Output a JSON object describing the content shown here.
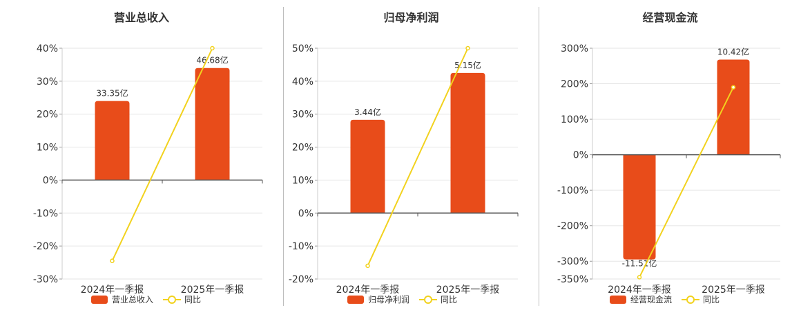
{
  "colors": {
    "bar": "#e84c1a",
    "line": "#f2d21e",
    "axis": "#555555",
    "grid": "#e6e6e6"
  },
  "chart_data": [
    {
      "type": "bar",
      "title": "营业总收入",
      "categories": [
        "2024年一季报",
        "2025年一季报"
      ],
      "series": [
        {
          "name": "营业总收入",
          "kind": "bar",
          "values": [
            24.0,
            34.0
          ],
          "labels": [
            "33.35亿",
            "46.68亿"
          ]
        },
        {
          "name": "同比",
          "kind": "line",
          "values": [
            -24.5,
            40.0
          ]
        }
      ],
      "ylim": [
        -30,
        40
      ],
      "yticks": [
        40,
        30,
        20,
        10,
        0,
        -10,
        -20,
        -30
      ],
      "ytick_labels": [
        "40%",
        "30%",
        "20%",
        "10%",
        "0%",
        "-10%",
        "-20%",
        "-30%"
      ],
      "grid": true,
      "legend": "bottom"
    },
    {
      "type": "bar",
      "title": "归母净利润",
      "categories": [
        "2024年一季报",
        "2025年一季报"
      ],
      "series": [
        {
          "name": "归母净利润",
          "kind": "bar",
          "values": [
            28.3,
            42.5
          ],
          "labels": [
            "3.44亿",
            "5.15亿"
          ]
        },
        {
          "name": "同比",
          "kind": "line",
          "values": [
            -16.0,
            50.0
          ]
        }
      ],
      "ylim": [
        -20,
        50
      ],
      "yticks": [
        50,
        40,
        30,
        20,
        10,
        0,
        -10,
        -20
      ],
      "ytick_labels": [
        "50%",
        "40%",
        "30%",
        "20%",
        "10%",
        "0%",
        "-10%",
        "-20%"
      ],
      "grid": true,
      "legend": "bottom"
    },
    {
      "type": "bar",
      "title": "经营现金流",
      "categories": [
        "2024年一季报",
        "2025年一季报"
      ],
      "series": [
        {
          "name": "经营现金流",
          "kind": "bar",
          "values": [
            -295,
            268
          ],
          "labels": [
            "-11.51亿",
            "10.42亿"
          ]
        },
        {
          "name": "同比",
          "kind": "line",
          "values": [
            -345,
            190
          ]
        }
      ],
      "ylim": [
        -350,
        300
      ],
      "yticks": [
        300,
        200,
        100,
        0,
        -100,
        -200,
        -300,
        -350
      ],
      "ytick_labels": [
        "300%",
        "200%",
        "100%",
        "0%",
        "-100%",
        "-200%",
        "-300%",
        "-350%"
      ],
      "grid": true,
      "legend": "bottom"
    }
  ]
}
